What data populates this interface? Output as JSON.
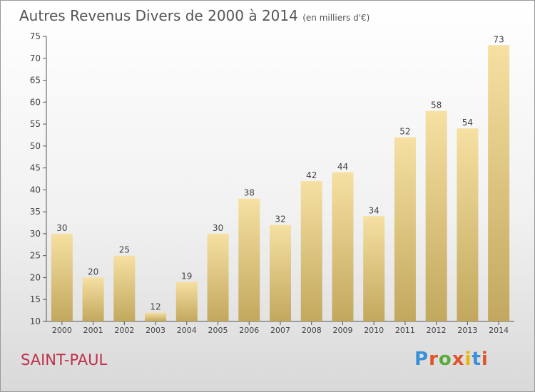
{
  "header": {
    "title": "Autres Revenus Divers de 2000 à 2014",
    "subtitle": "(en milliers d'€)"
  },
  "footer": {
    "city": "SAINT-PAUL",
    "brand": "Proxiti"
  },
  "colors": {
    "bar_light": "#f6e0a2",
    "bar_dark": "#c2a85e",
    "city": "#c0304a",
    "brand": [
      "#3a8fd6",
      "#e0542c",
      "#5aaa3c",
      "#e0542c",
      "#f2b300",
      "#3a8fd6",
      "#e0542c"
    ]
  },
  "chart_data": {
    "type": "bar",
    "categories": [
      "2000",
      "2001",
      "2002",
      "2003",
      "2004",
      "2005",
      "2006",
      "2007",
      "2008",
      "2009",
      "2010",
      "2011",
      "2012",
      "2013",
      "2014"
    ],
    "values": [
      30,
      20,
      25,
      12,
      19,
      30,
      38,
      32,
      42,
      44,
      34,
      52,
      58,
      54,
      73
    ],
    "title": "Autres Revenus Divers de 2000 à 2014",
    "subtitle": "(en milliers d'€)",
    "ylim": [
      10,
      75
    ],
    "yticks": [
      10,
      15,
      20,
      25,
      30,
      35,
      40,
      45,
      50,
      55,
      60,
      65,
      70,
      75
    ],
    "grid": false,
    "data_labels": true
  }
}
